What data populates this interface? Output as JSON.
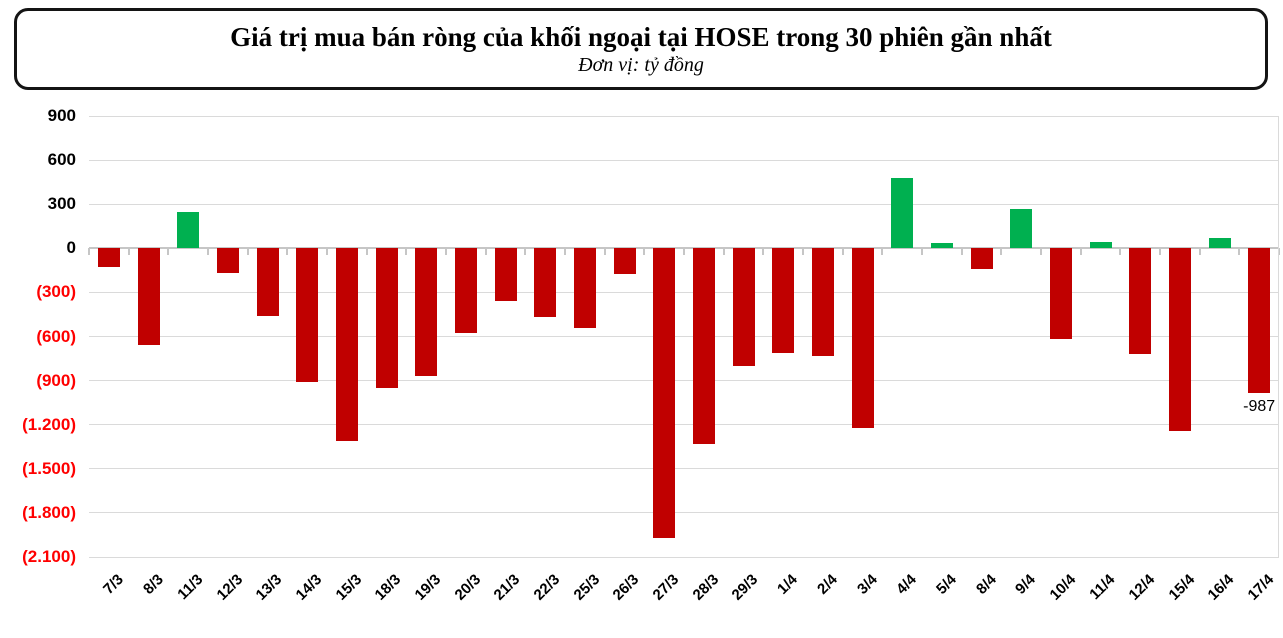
{
  "title": "Giá trị mua bán ròng của khối ngoại tại HOSE trong 30 phiên gần nhất",
  "subtitle": "Đơn vị: tỷ đồng",
  "chart_data": {
    "type": "bar",
    "title": "Giá trị mua bán ròng của khối ngoại tại HOSE trong 30 phiên gần nhất",
    "unit_label": "Đơn vị: tỷ đồng",
    "categories": [
      "7/3",
      "8/3",
      "11/3",
      "12/3",
      "13/3",
      "14/3",
      "15/3",
      "18/3",
      "19/3",
      "20/3",
      "21/3",
      "22/3",
      "25/3",
      "26/3",
      "27/3",
      "28/3",
      "29/3",
      "1/4",
      "2/4",
      "3/4",
      "4/4",
      "5/4",
      "8/4",
      "9/4",
      "10/4",
      "11/4",
      "12/4",
      "15/4",
      "16/4",
      "17/4"
    ],
    "values": [
      -130,
      -660,
      250,
      -165,
      -460,
      -910,
      -1310,
      -950,
      -870,
      -575,
      -360,
      -465,
      -540,
      -175,
      -1970,
      -1330,
      -800,
      -715,
      -735,
      -1225,
      480,
      35,
      -140,
      265,
      -620,
      45,
      -720,
      -1240,
      70,
      -987
    ],
    "ylim": [
      -2100,
      900
    ],
    "y_ticks": [
      900,
      600,
      300,
      0,
      -300,
      -600,
      -900,
      -1200,
      -1500,
      -1800,
      -2100
    ],
    "y_tick_labels": [
      "900",
      "600",
      "300",
      "0",
      "(300)",
      "(600)",
      "(900)",
      "(1.200)",
      "(1.500)",
      "(1.800)",
      "(2.100)"
    ],
    "data_labels": {
      "17/4": "-987"
    },
    "grid": true,
    "legend": false,
    "colors": {
      "positive": "#00B050",
      "negative": "#C00000",
      "axis_label_positive": "#000000",
      "axis_label_negative": "#FF0000",
      "gridline": "#DADADA",
      "axis_line": "#C6C6C6"
    }
  }
}
